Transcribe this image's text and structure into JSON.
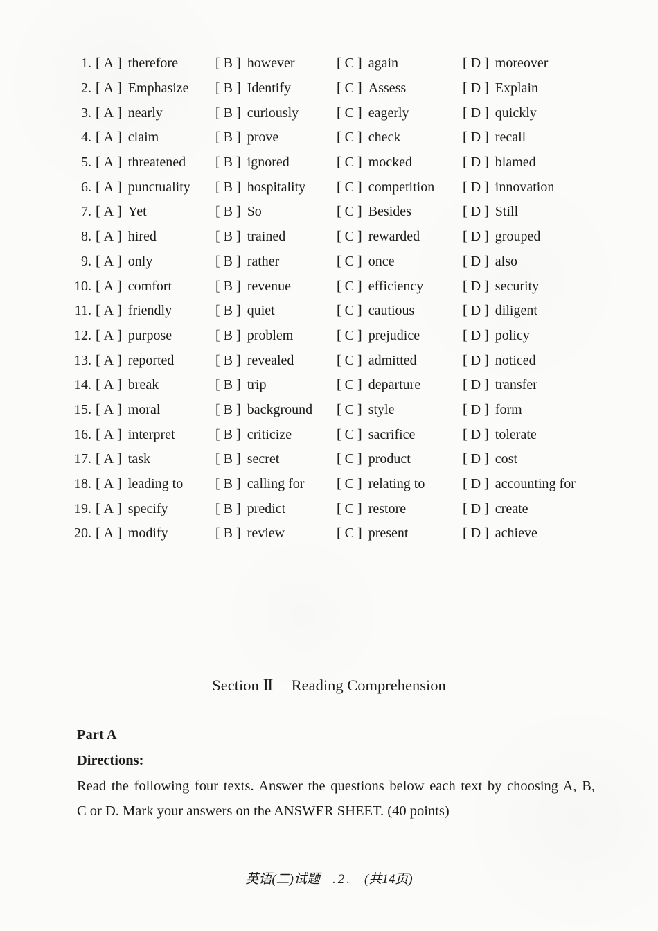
{
  "ui": {
    "bracket_open": "[",
    "bracket_close": "]"
  },
  "questions": [
    {
      "number": "1.",
      "options": [
        {
          "letter": "A",
          "text": "therefore"
        },
        {
          "letter": "B",
          "text": "however"
        },
        {
          "letter": "C",
          "text": "again"
        },
        {
          "letter": "D",
          "text": "moreover"
        }
      ]
    },
    {
      "number": "2.",
      "options": [
        {
          "letter": "A",
          "text": "Emphasize"
        },
        {
          "letter": "B",
          "text": "Identify"
        },
        {
          "letter": "C",
          "text": "Assess"
        },
        {
          "letter": "D",
          "text": "Explain"
        }
      ]
    },
    {
      "number": "3.",
      "options": [
        {
          "letter": "A",
          "text": "nearly"
        },
        {
          "letter": "B",
          "text": "curiously"
        },
        {
          "letter": "C",
          "text": "eagerly"
        },
        {
          "letter": "D",
          "text": "quickly"
        }
      ]
    },
    {
      "number": "4.",
      "options": [
        {
          "letter": "A",
          "text": "claim"
        },
        {
          "letter": "B",
          "text": "prove"
        },
        {
          "letter": "C",
          "text": "check"
        },
        {
          "letter": "D",
          "text": "recall"
        }
      ]
    },
    {
      "number": "5.",
      "options": [
        {
          "letter": "A",
          "text": "threatened"
        },
        {
          "letter": "B",
          "text": "ignored"
        },
        {
          "letter": "C",
          "text": "mocked"
        },
        {
          "letter": "D",
          "text": "blamed"
        }
      ]
    },
    {
      "number": "6.",
      "options": [
        {
          "letter": "A",
          "text": "punctuality"
        },
        {
          "letter": "B",
          "text": "hospitality"
        },
        {
          "letter": "C",
          "text": "competition"
        },
        {
          "letter": "D",
          "text": "innovation"
        }
      ]
    },
    {
      "number": "7.",
      "options": [
        {
          "letter": "A",
          "text": "Yet"
        },
        {
          "letter": "B",
          "text": "So"
        },
        {
          "letter": "C",
          "text": "Besides"
        },
        {
          "letter": "D",
          "text": "Still"
        }
      ]
    },
    {
      "number": "8.",
      "options": [
        {
          "letter": "A",
          "text": "hired"
        },
        {
          "letter": "B",
          "text": "trained"
        },
        {
          "letter": "C",
          "text": "rewarded"
        },
        {
          "letter": "D",
          "text": "grouped"
        }
      ]
    },
    {
      "number": "9.",
      "options": [
        {
          "letter": "A",
          "text": "only"
        },
        {
          "letter": "B",
          "text": "rather"
        },
        {
          "letter": "C",
          "text": "once"
        },
        {
          "letter": "D",
          "text": "also"
        }
      ]
    },
    {
      "number": "10.",
      "options": [
        {
          "letter": "A",
          "text": "comfort"
        },
        {
          "letter": "B",
          "text": "revenue"
        },
        {
          "letter": "C",
          "text": "efficiency"
        },
        {
          "letter": "D",
          "text": "security"
        }
      ]
    },
    {
      "number": "11.",
      "options": [
        {
          "letter": "A",
          "text": "friendly"
        },
        {
          "letter": "B",
          "text": "quiet"
        },
        {
          "letter": "C",
          "text": "cautious"
        },
        {
          "letter": "D",
          "text": "diligent"
        }
      ]
    },
    {
      "number": "12.",
      "options": [
        {
          "letter": "A",
          "text": "purpose"
        },
        {
          "letter": "B",
          "text": "problem"
        },
        {
          "letter": "C",
          "text": "prejudice"
        },
        {
          "letter": "D",
          "text": "policy"
        }
      ]
    },
    {
      "number": "13.",
      "options": [
        {
          "letter": "A",
          "text": "reported"
        },
        {
          "letter": "B",
          "text": "revealed"
        },
        {
          "letter": "C",
          "text": "admitted"
        },
        {
          "letter": "D",
          "text": "noticed"
        }
      ]
    },
    {
      "number": "14.",
      "options": [
        {
          "letter": "A",
          "text": "break"
        },
        {
          "letter": "B",
          "text": "trip"
        },
        {
          "letter": "C",
          "text": "departure"
        },
        {
          "letter": "D",
          "text": "transfer"
        }
      ]
    },
    {
      "number": "15.",
      "options": [
        {
          "letter": "A",
          "text": "moral"
        },
        {
          "letter": "B",
          "text": "background"
        },
        {
          "letter": "C",
          "text": "style"
        },
        {
          "letter": "D",
          "text": "form"
        }
      ]
    },
    {
      "number": "16.",
      "options": [
        {
          "letter": "A",
          "text": "interpret"
        },
        {
          "letter": "B",
          "text": "criticize"
        },
        {
          "letter": "C",
          "text": "sacrifice"
        },
        {
          "letter": "D",
          "text": "tolerate"
        }
      ]
    },
    {
      "number": "17.",
      "options": [
        {
          "letter": "A",
          "text": "task"
        },
        {
          "letter": "B",
          "text": "secret"
        },
        {
          "letter": "C",
          "text": "product"
        },
        {
          "letter": "D",
          "text": "cost"
        }
      ]
    },
    {
      "number": "18.",
      "options": [
        {
          "letter": "A",
          "text": "leading to"
        },
        {
          "letter": "B",
          "text": "calling for"
        },
        {
          "letter": "C",
          "text": "relating to"
        },
        {
          "letter": "D",
          "text": "accounting for"
        }
      ]
    },
    {
      "number": "19.",
      "options": [
        {
          "letter": "A",
          "text": "specify"
        },
        {
          "letter": "B",
          "text": "predict"
        },
        {
          "letter": "C",
          "text": "restore"
        },
        {
          "letter": "D",
          "text": "create"
        }
      ]
    },
    {
      "number": "20.",
      "options": [
        {
          "letter": "A",
          "text": "modify"
        },
        {
          "letter": "B",
          "text": "review"
        },
        {
          "letter": "C",
          "text": "present"
        },
        {
          "letter": "D",
          "text": "achieve"
        }
      ]
    }
  ],
  "section": {
    "heading_left": "Section Ⅱ",
    "heading_right": "Reading Comprehension"
  },
  "part": {
    "label": "Part A"
  },
  "directions": {
    "label": "Directions:",
    "lines": [
      "Read the following four texts. Answer the questions below each text by choosing A, B,",
      "C or D. Mark your answers on the ANSWER SHEET. (40 points)"
    ]
  },
  "footer": {
    "title": "英语(二)试题",
    "page": ".2.",
    "total": "(共14页)"
  }
}
